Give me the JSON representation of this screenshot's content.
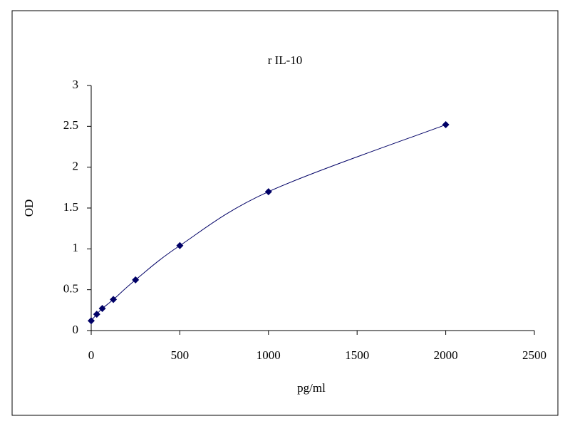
{
  "chart_data": {
    "type": "line",
    "title": "r IL-10",
    "x_label": "pg/ml",
    "y_label": "OD",
    "x": [
      0,
      31.25,
      62.5,
      125,
      250,
      500,
      1000,
      2000
    ],
    "series": [
      {
        "color": "#000066",
        "values": [
          0.12,
          0.2,
          0.27,
          0.38,
          0.62,
          1.04,
          1.7,
          2.52
        ]
      }
    ],
    "xlim": [
      0,
      2500
    ],
    "xticks": [
      0,
      500,
      1000,
      1500,
      2000,
      2500
    ],
    "ylim": [
      0,
      3
    ],
    "yticks": [
      0,
      0.5,
      1,
      1.5,
      2,
      2.5,
      3
    ],
    "grid": false,
    "smooth": true
  }
}
